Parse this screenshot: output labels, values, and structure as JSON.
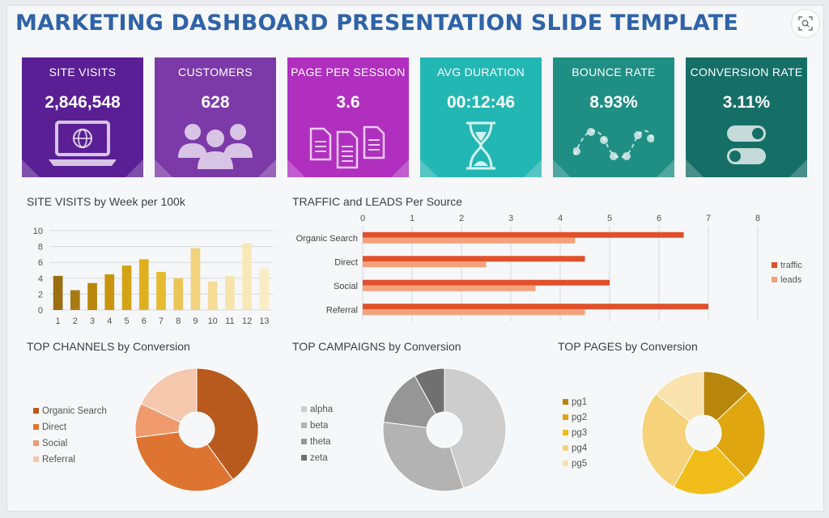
{
  "title": "MARKETING DASHBOARD PRESENTATION SLIDE TEMPLATE",
  "lens_icon": "visual-search-icon",
  "kpis": [
    {
      "label": "SITE VISITS",
      "value": "2,846,548",
      "color": "#5a1f94",
      "icon": "laptop-globe-icon"
    },
    {
      "label": "CUSTOMERS",
      "value": "628",
      "color": "#7c3aa8",
      "icon": "people-group-icon"
    },
    {
      "label": "PAGE PER SESSION",
      "value": "3.6",
      "color": "#b02fbf",
      "icon": "documents-icon"
    },
    {
      "label": "AVG DURATION",
      "value": "00:12:46",
      "color": "#23b7b4",
      "icon": "hourglass-icon"
    },
    {
      "label": "BOUNCE RATE",
      "value": "8.93%",
      "color": "#1f8f84",
      "icon": "wave-dots-icon"
    },
    {
      "label": "CONVERSION RATE",
      "value": "3.11%",
      "color": "#166f67",
      "icon": "toggle-switch-icon"
    }
  ],
  "chart_data": [
    {
      "type": "bar",
      "title": "SITE VISITS by Week per 100k",
      "categories": [
        "1",
        "2",
        "3",
        "4",
        "5",
        "6",
        "7",
        "8",
        "9",
        "10",
        "11",
        "12",
        "13"
      ],
      "values": [
        4.3,
        2.5,
        3.4,
        4.5,
        5.6,
        6.4,
        4.8,
        4.0,
        7.8,
        3.6,
        4.3,
        8.4,
        5.2
      ],
      "colors": [
        "#9a6f12",
        "#a87a12",
        "#b8860b",
        "#c9950f",
        "#d4a316",
        "#dfb01d",
        "#e6bb2f",
        "#ebc657",
        "#f1d37f",
        "#f5dd98",
        "#f7e4ad",
        "#f8e8b8",
        "#f9edc6"
      ],
      "ylim": [
        0,
        10
      ],
      "yticks": [
        "0",
        "2",
        "4",
        "6",
        "8",
        "10"
      ]
    },
    {
      "type": "bar",
      "orientation": "horizontal",
      "title": "TRAFFIC and LEADS Per Source",
      "categories": [
        "Organic Search",
        "Direct",
        "Social",
        "Referral"
      ],
      "series": [
        {
          "name": "traffic",
          "values": [
            6.5,
            4.5,
            5.0,
            7.0
          ],
          "color": "#e0502a"
        },
        {
          "name": "leads",
          "values": [
            4.3,
            2.5,
            3.5,
            4.5
          ],
          "color": "#f4a27c"
        }
      ],
      "xlim": [
        0,
        8
      ],
      "xticks": [
        "0",
        "1",
        "2",
        "3",
        "4",
        "5",
        "6",
        "7",
        "8"
      ]
    },
    {
      "type": "pie",
      "title": "TOP CHANNELS by Conversion",
      "labels": [
        "Organic Search",
        "Direct",
        "Social",
        "Referral"
      ],
      "values": [
        40,
        33,
        9,
        18
      ],
      "colors": [
        "#b85a1e",
        "#de7431",
        "#ee9a6d",
        "#f5c7ad"
      ]
    },
    {
      "type": "pie",
      "title": "TOP CAMPAIGNS by Conversion",
      "labels": [
        "alpha",
        "beta",
        "theta",
        "zeta"
      ],
      "values": [
        45,
        32,
        15,
        8
      ],
      "colors": [
        "#cdcdcd",
        "#b3b3b3",
        "#969696",
        "#707070"
      ]
    },
    {
      "type": "pie",
      "title": "TOP PAGES by Conversion",
      "labels": [
        "pg1",
        "pg2",
        "pg3",
        "pg4",
        "pg5"
      ],
      "values": [
        13,
        25,
        20,
        28,
        14
      ],
      "colors": [
        "#b8860b",
        "#dfa60f",
        "#f0bd1a",
        "#f6d27a",
        "#f9e2ad"
      ]
    }
  ]
}
